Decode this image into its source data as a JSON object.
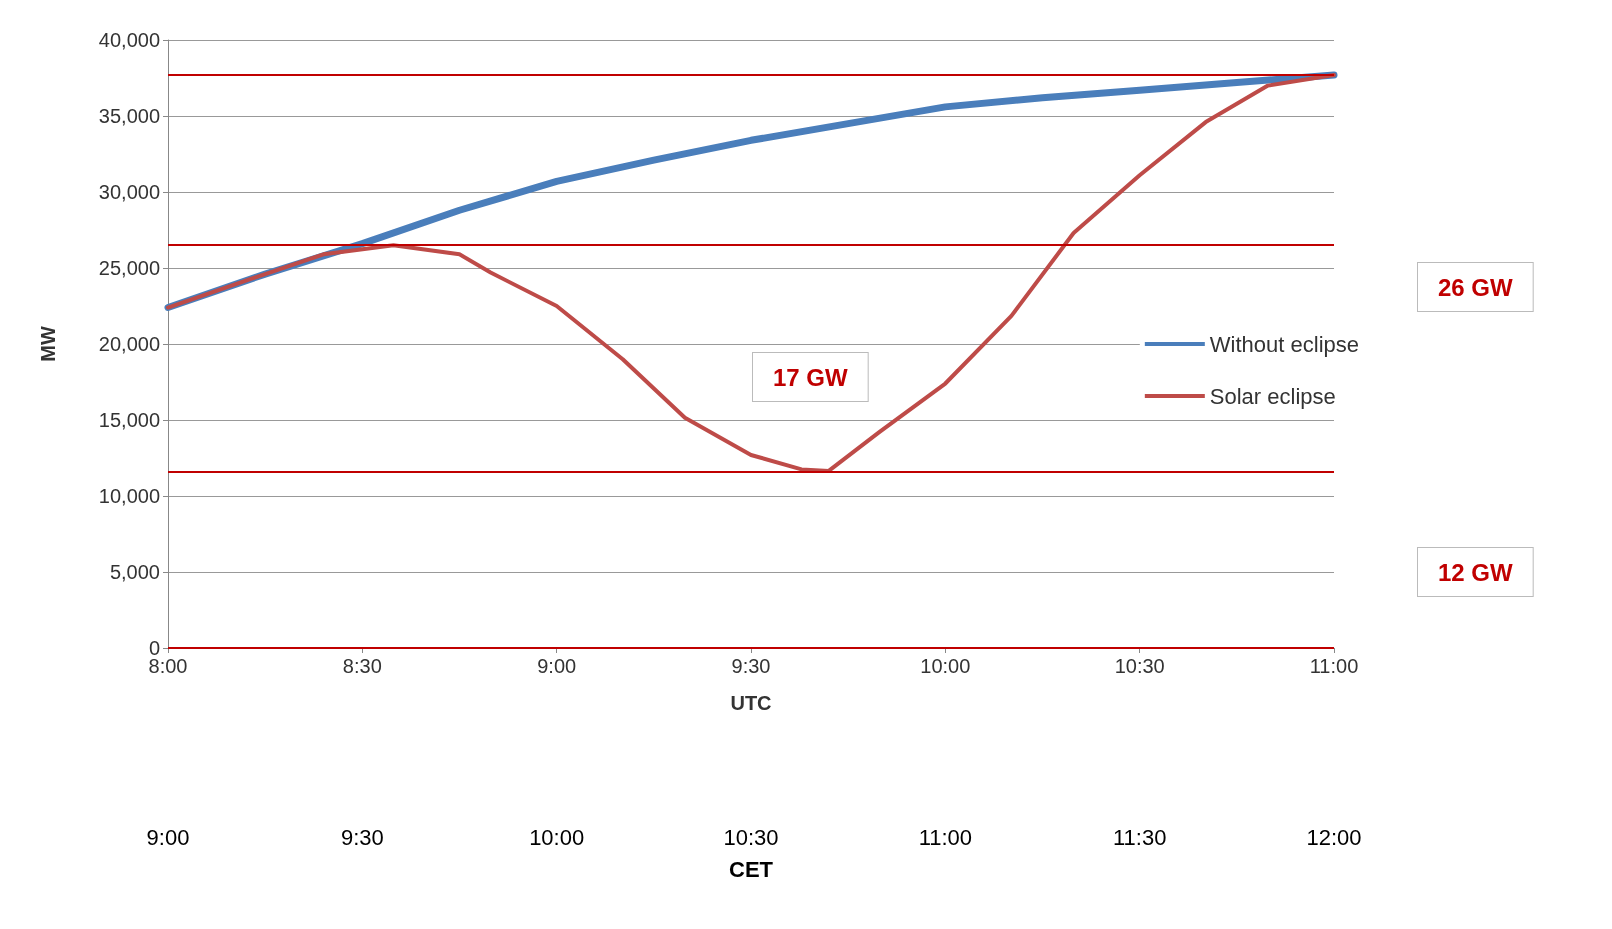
{
  "chart_data": {
    "type": "line",
    "xlabel": "UTC",
    "ylabel": "MW",
    "x2label": "CET",
    "xlim": [
      8,
      11
    ],
    "xticks": [
      {
        "value": 8,
        "label": "8:00"
      },
      {
        "value": 8.5,
        "label": "8:30"
      },
      {
        "value": 9,
        "label": "9:00"
      },
      {
        "value": 9.5,
        "label": "9:30"
      },
      {
        "value": 10,
        "label": "10:00"
      },
      {
        "value": 10.5,
        "label": "10:30"
      },
      {
        "value": 11,
        "label": "11:00"
      }
    ],
    "x2lim": [
      9,
      12
    ],
    "x2ticks": [
      {
        "value": 9,
        "label": "9:00"
      },
      {
        "value": 9.5,
        "label": "9:30"
      },
      {
        "value": 10,
        "label": "10:00"
      },
      {
        "value": 10.5,
        "label": "10:30"
      },
      {
        "value": 11,
        "label": "11:00"
      },
      {
        "value": 11.5,
        "label": "11:30"
      },
      {
        "value": 12,
        "label": "12:00"
      }
    ],
    "ylim": [
      0,
      40000
    ],
    "yticks": [
      {
        "value": 0,
        "label": "0"
      },
      {
        "value": 5000,
        "label": "5,000"
      },
      {
        "value": 10000,
        "label": "10,000"
      },
      {
        "value": 15000,
        "label": "15,000"
      },
      {
        "value": 20000,
        "label": "20,000"
      },
      {
        "value": 25000,
        "label": "25,000"
      },
      {
        "value": 30000,
        "label": "30,000"
      },
      {
        "value": 35000,
        "label": "35,000"
      },
      {
        "value": 40000,
        "label": "40,000"
      }
    ],
    "grid": "y",
    "legend": "right",
    "marker": "none",
    "line_style": "solid",
    "series": [
      {
        "name": "Without eclipse",
        "color": "#4a7ebb",
        "x": [
          8,
          8.25,
          8.5,
          8.75,
          9,
          9.25,
          9.5,
          9.75,
          10,
          10.25,
          10.5,
          10.75,
          11
        ],
        "values": [
          22400,
          24600,
          26600,
          28800,
          30700,
          32100,
          33400,
          34500,
          35600,
          36200,
          36700,
          37200,
          37700
        ]
      },
      {
        "name": "Solar eclipse",
        "color": "#be4b48",
        "x": [
          8,
          8.25,
          8.4,
          8.58,
          8.75,
          8.83,
          9,
          9.17,
          9.33,
          9.5,
          9.63,
          9.7,
          9.83,
          10,
          10.17,
          10.33,
          10.5,
          10.67,
          10.83,
          11
        ],
        "values": [
          22400,
          24600,
          25900,
          26500,
          25900,
          24700,
          22500,
          19000,
          15150,
          12700,
          11750,
          11650,
          14200,
          17400,
          21850,
          27300,
          31100,
          34600,
          37000,
          37700
        ]
      }
    ],
    "ref_lines": [
      {
        "axis": "y",
        "value": 37700,
        "label": null,
        "color": "#c00000"
      },
      {
        "axis": "y",
        "value": 26500,
        "label": null,
        "color": "#c00000"
      },
      {
        "axis": "y",
        "value": 11600,
        "label": null,
        "color": "#c00000"
      },
      {
        "axis": "y",
        "value": 0,
        "label": null,
        "color": "#c00000"
      }
    ],
    "annotations": [
      "17 GW",
      "26 GW",
      "12 GW"
    ]
  }
}
